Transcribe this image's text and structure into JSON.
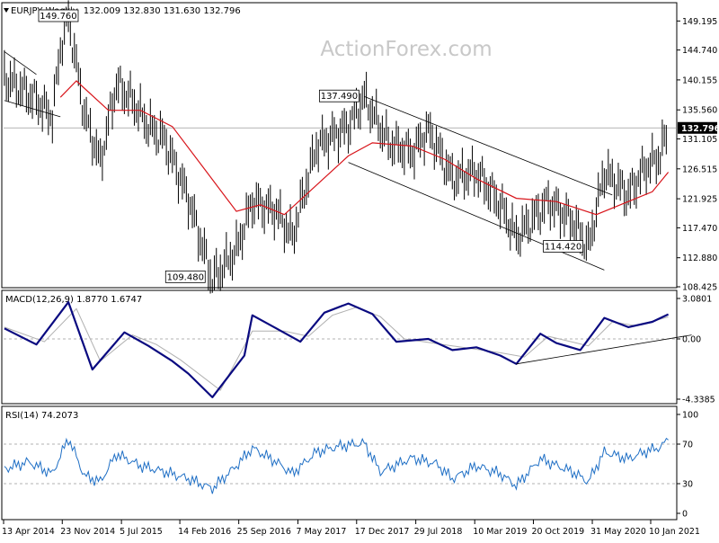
{
  "header": {
    "symbol": "EURJPY",
    "timeframe": "Weekly",
    "ohlc": "132.009 132.830 131.630 132.796",
    "watermark": "ActionForex.com"
  },
  "chart_data": [
    {
      "type": "candlestick",
      "title": "EURJPY Weekly",
      "ylim": [
        108.425,
        152.0
      ],
      "y_ticks": [
        "149.195",
        "144.740",
        "140.155",
        "135.560",
        "131.105",
        "126.515",
        "121.925",
        "117.470",
        "112.880",
        "108.425"
      ],
      "last_price_label": "132.796",
      "last_price": 132.796,
      "annotations": [
        {
          "label": "149.760",
          "value": 149.76,
          "at_date": "Jan 2015"
        },
        {
          "label": "137.490",
          "value": 137.49,
          "at_date": "Jan 2018"
        },
        {
          "label": "109.480",
          "value": 109.48,
          "at_date": "Jun 2016"
        },
        {
          "label": "114.420",
          "value": 114.42,
          "at_date": "May 2020"
        }
      ],
      "price_path": [
        {
          "date": "Apr 2014",
          "value": 140.5
        },
        {
          "date": "Aug 2014",
          "value": 137.0
        },
        {
          "date": "Oct 2014",
          "value": 134.5
        },
        {
          "date": "Nov 2014",
          "value": 145.0
        },
        {
          "date": "Dec 2014",
          "value": 149.76
        },
        {
          "date": "Feb 2015",
          "value": 135.0
        },
        {
          "date": "Apr 2015",
          "value": 127.5
        },
        {
          "date": "Jun 2015",
          "value": 139.5
        },
        {
          "date": "Aug 2015",
          "value": 137.0
        },
        {
          "date": "Oct 2015",
          "value": 133.0
        },
        {
          "date": "Dec 2015",
          "value": 131.0
        },
        {
          "date": "Mar 2016",
          "value": 122.0
        },
        {
          "date": "Jun 2016",
          "value": 109.48
        },
        {
          "date": "Sep 2016",
          "value": 114.0
        },
        {
          "date": "Nov 2016",
          "value": 121.5
        },
        {
          "date": "Feb 2017",
          "value": 120.0
        },
        {
          "date": "Apr 2017",
          "value": 116.0
        },
        {
          "date": "Jul 2017",
          "value": 130.0
        },
        {
          "date": "Nov 2017",
          "value": 133.0
        },
        {
          "date": "Jan 2018",
          "value": 137.49
        },
        {
          "date": "Apr 2018",
          "value": 130.5
        },
        {
          "date": "Jul 2018",
          "value": 129.0
        },
        {
          "date": "Sep 2018",
          "value": 132.5
        },
        {
          "date": "Dec 2018",
          "value": 125.0
        },
        {
          "date": "Mar 2019",
          "value": 126.0
        },
        {
          "date": "Jun 2019",
          "value": 121.0
        },
        {
          "date": "Aug 2019",
          "value": 116.0
        },
        {
          "date": "Dec 2019",
          "value": 121.5
        },
        {
          "date": "Mar 2020",
          "value": 118.5
        },
        {
          "date": "May 2020",
          "value": 114.42
        },
        {
          "date": "Jul 2020",
          "value": 126.0
        },
        {
          "date": "Oct 2020",
          "value": 122.5
        },
        {
          "date": "Dec 2020",
          "value": 126.5
        },
        {
          "date": "Feb 2021",
          "value": 128.5
        },
        {
          "date": "Mar 2021",
          "value": 132.796
        }
      ],
      "moving_average": [
        {
          "date": "Nov 2014",
          "value": 137.5
        },
        {
          "date": "Jan 2015",
          "value": 140.0
        },
        {
          "date": "May 2015",
          "value": 135.5
        },
        {
          "date": "Sep 2015",
          "value": 135.5
        },
        {
          "date": "Jan 2016",
          "value": 133.0
        },
        {
          "date": "May 2016",
          "value": 126.5
        },
        {
          "date": "Sep 2016",
          "value": 120.0
        },
        {
          "date": "Dec 2016",
          "value": 121.0
        },
        {
          "date": "Mar 2017",
          "value": 119.5
        },
        {
          "date": "Jul 2017",
          "value": 124.0
        },
        {
          "date": "Nov 2017",
          "value": 128.5
        },
        {
          "date": "Feb 2018",
          "value": 130.5
        },
        {
          "date": "Jul 2018",
          "value": 130.0
        },
        {
          "date": "Nov 2018",
          "value": 128.0
        },
        {
          "date": "Mar 2019",
          "value": 125.0
        },
        {
          "date": "Aug 2019",
          "value": 122.0
        },
        {
          "date": "Jan 2020",
          "value": 121.5
        },
        {
          "date": "Jun 2020",
          "value": 119.5
        },
        {
          "date": "Oct 2020",
          "value": 121.5
        },
        {
          "date": "Jan 2021",
          "value": 123.0
        },
        {
          "date": "Mar 2021",
          "value": 126.0
        }
      ],
      "colors": {
        "price": "#000000",
        "moving_average": "#d8151b",
        "trendline": "#000000",
        "last_price_line": "#9c9c9c"
      }
    },
    {
      "type": "line",
      "title": "MACD(12,26,9) 1.8770 1.6747",
      "ylim": [
        -4.3385,
        3.0801
      ],
      "y_ticks": [
        "3.0801",
        "0.00",
        "-4.3385"
      ],
      "series": [
        {
          "values": [
            {
              "date": "Apr 2014",
              "value": 0.8
            },
            {
              "date": "Aug 2014",
              "value": -0.4
            },
            {
              "date": "Dec 2014",
              "value": 2.8
            },
            {
              "date": "Mar 2015",
              "value": -2.2
            },
            {
              "date": "Jul 2015",
              "value": 0.5
            },
            {
              "date": "Oct 2015",
              "value": -0.5
            },
            {
              "date": "Jan 2016",
              "value": -1.6
            },
            {
              "date": "Mar 2016",
              "value": -2.5
            },
            {
              "date": "Jun 2016",
              "value": -4.2
            },
            {
              "date": "Oct 2016",
              "value": -1.2
            },
            {
              "date": "Nov 2016",
              "value": 1.8
            },
            {
              "date": "Feb 2017",
              "value": 0.8
            },
            {
              "date": "May 2017",
              "value": -0.2
            },
            {
              "date": "Aug 2017",
              "value": 2.0
            },
            {
              "date": "Nov 2017",
              "value": 2.7
            },
            {
              "date": "Feb 2018",
              "value": 1.9
            },
            {
              "date": "May 2018",
              "value": -0.2
            },
            {
              "date": "Sep 2018",
              "value": 0.0
            },
            {
              "date": "Dec 2018",
              "value": -0.8
            },
            {
              "date": "Mar 2019",
              "value": -0.6
            },
            {
              "date": "Jun 2019",
              "value": -1.2
            },
            {
              "date": "Aug 2019",
              "value": -1.8
            },
            {
              "date": "Nov 2019",
              "value": 0.4
            },
            {
              "date": "Jan 2020",
              "value": -0.3
            },
            {
              "date": "Apr 2020",
              "value": -0.8
            },
            {
              "date": "Jul 2020",
              "value": 1.6
            },
            {
              "date": "Oct 2020",
              "value": 0.9
            },
            {
              "date": "Jan 2021",
              "value": 1.3
            },
            {
              "date": "Mar 2021",
              "value": 1.877
            }
          ],
          "color": "#0a0a80"
        },
        {
          "values": [
            {
              "date": "Apr 2014",
              "value": 0.9
            },
            {
              "date": "Sep 2014",
              "value": -0.2
            },
            {
              "date": "Jan 2015",
              "value": 2.3
            },
            {
              "date": "Apr 2015",
              "value": -1.6
            },
            {
              "date": "Aug 2015",
              "value": 0.3
            },
            {
              "date": "Nov 2015",
              "value": -0.4
            },
            {
              "date": "Feb 2016",
              "value": -1.5
            },
            {
              "date": "Jul 2016",
              "value": -3.7
            },
            {
              "date": "Nov 2016",
              "value": 0.6
            },
            {
              "date": "Mar 2017",
              "value": 0.6
            },
            {
              "date": "Jun 2017",
              "value": 0.2
            },
            {
              "date": "Sep 2017",
              "value": 1.8
            },
            {
              "date": "Dec 2017",
              "value": 2.4
            },
            {
              "date": "Mar 2018",
              "value": 1.7
            },
            {
              "date": "Jun 2018",
              "value": 0.0
            },
            {
              "date": "Dec 2018",
              "value": -0.5
            },
            {
              "date": "Jun 2019",
              "value": -1.0
            },
            {
              "date": "Sep 2019",
              "value": -1.3
            },
            {
              "date": "Dec 2019",
              "value": 0.2
            },
            {
              "date": "May 2020",
              "value": -0.5
            },
            {
              "date": "Aug 2020",
              "value": 1.3
            },
            {
              "date": "Nov 2020",
              "value": 1.0
            },
            {
              "date": "Mar 2021",
              "value": 1.6747
            }
          ],
          "color": "#b0b0b0"
        }
      ],
      "trendline": [
        {
          "date": "Aug 2019",
          "value": -1.8
        },
        {
          "date": "Mar 2021",
          "value": 0.3
        }
      ]
    },
    {
      "type": "line",
      "title": "RSI(14) 74.2073",
      "ylim": [
        0,
        100
      ],
      "y_ticks": [
        "100",
        "70",
        "30",
        "0"
      ],
      "levels": [
        70,
        30
      ],
      "series": [
        {
          "values": [
            {
              "date": "Apr 2014",
              "value": 45
            },
            {
              "date": "Jul 2014",
              "value": 52
            },
            {
              "date": "Oct 2014",
              "value": 40
            },
            {
              "date": "Dec 2014",
              "value": 76
            },
            {
              "date": "Feb 2015",
              "value": 38
            },
            {
              "date": "Apr 2015",
              "value": 32
            },
            {
              "date": "Jun 2015",
              "value": 60
            },
            {
              "date": "Sep 2015",
              "value": 48
            },
            {
              "date": "Dec 2015",
              "value": 42
            },
            {
              "date": "Mar 2016",
              "value": 35
            },
            {
              "date": "Jun 2016",
              "value": 25
            },
            {
              "date": "Sep 2016",
              "value": 48
            },
            {
              "date": "Nov 2016",
              "value": 66
            },
            {
              "date": "Feb 2017",
              "value": 52
            },
            {
              "date": "Apr 2017",
              "value": 40
            },
            {
              "date": "Jul 2017",
              "value": 62
            },
            {
              "date": "Oct 2017",
              "value": 68
            },
            {
              "date": "Jan 2018",
              "value": 71
            },
            {
              "date": "Mar 2018",
              "value": 42
            },
            {
              "date": "Jul 2018",
              "value": 56
            },
            {
              "date": "Oct 2018",
              "value": 50
            },
            {
              "date": "Dec 2018",
              "value": 35
            },
            {
              "date": "Mar 2019",
              "value": 48
            },
            {
              "date": "Jun 2019",
              "value": 40
            },
            {
              "date": "Aug 2019",
              "value": 28
            },
            {
              "date": "Nov 2019",
              "value": 55
            },
            {
              "date": "Mar 2020",
              "value": 42
            },
            {
              "date": "May 2020",
              "value": 32
            },
            {
              "date": "Jul 2020",
              "value": 62
            },
            {
              "date": "Oct 2020",
              "value": 55
            },
            {
              "date": "Dec 2020",
              "value": 62
            },
            {
              "date": "Feb 2021",
              "value": 67
            },
            {
              "date": "Mar 2021",
              "value": 74.2073
            }
          ],
          "color": "#1f6fc5"
        }
      ]
    }
  ],
  "x_axis": {
    "tick_labels": [
      "13 Apr 2014",
      "23 Nov 2014",
      "5 Jul 2015",
      "14 Feb 2016",
      "25 Sep 2016",
      "7 May 2017",
      "17 Dec 2017",
      "29 Jul 2018",
      "10 Mar 2019",
      "20 Oct 2019",
      "31 May 2020",
      "10 Jan 2021"
    ]
  }
}
